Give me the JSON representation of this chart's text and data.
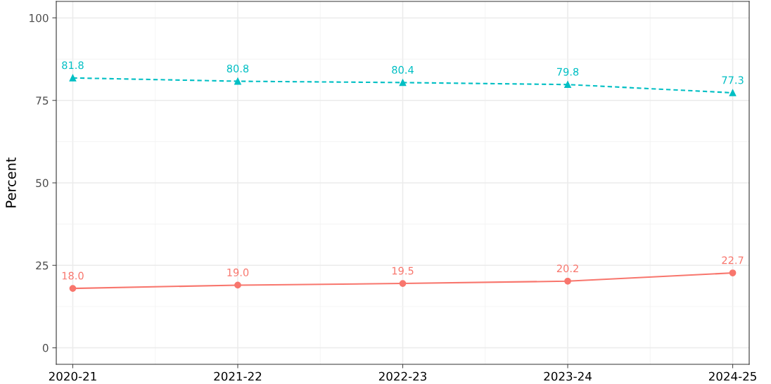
{
  "chart_data": {
    "type": "line",
    "ylabel": "Percent",
    "categories": [
      "2020-21",
      "2021-22",
      "2022-23",
      "2023-24",
      "2024-25"
    ],
    "series": [
      {
        "color": "#00bfc4",
        "values": [
          81.8,
          80.8,
          80.4,
          79.8,
          77.3
        ],
        "value_labels": [
          "81.8",
          "80.8",
          "80.4",
          "79.8",
          "77.3"
        ],
        "marker": "triangle",
        "line_style": "dashed"
      },
      {
        "color": "#f8766d",
        "values": [
          18.0,
          19.0,
          19.5,
          20.2,
          22.7
        ],
        "value_labels": [
          "18.0",
          "19.0",
          "19.5",
          "20.2",
          "22.7"
        ],
        "marker": "circle",
        "line_style": "solid"
      }
    ],
    "ylim": [
      -5,
      105
    ],
    "yticks": [
      0,
      25,
      50,
      75,
      100
    ],
    "grid": true
  }
}
